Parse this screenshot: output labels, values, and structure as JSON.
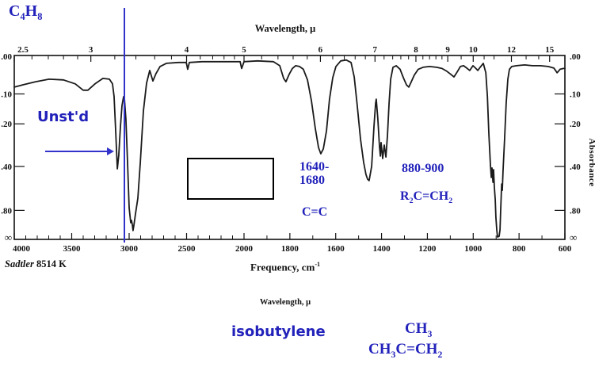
{
  "compound_formula": "C_{4}H_{8}",
  "annotations": {
    "unstd": "Unst'd",
    "range1_line1": "1640-",
    "range1_line2": "1680",
    "range1_group": "C=C",
    "range2": "880-900",
    "range2_group": "R_{2}C=CH_{2}"
  },
  "footer": {
    "source_name": "Sadtler",
    "source_code": "8514 K"
  },
  "caption": {
    "wavelength_label": "Wavelength, μ",
    "compound_name": "isobutylene",
    "structure_top": "CH_{3}",
    "structure_bottom": "CH_{3}C=CH_{2}"
  },
  "colors": {
    "annotation_blue": "#2222bb",
    "marker_blue": "#3333cc",
    "curve_black": "#1a1a1a",
    "axis_black": "#111111"
  },
  "chart_data": {
    "type": "line",
    "title_top_axis": "Wavelength, μ",
    "xlabel": "Frequency, cm^{-1}",
    "ylabel": "Absorbance",
    "x_range_cm1": [
      4000,
      600
    ],
    "x_scale_note": "linear 4000-2000 cm-1, expanded linear 2000-600 cm-1",
    "y_axis_labels": [
      ".00",
      ".10",
      ".20",
      ".40",
      ".80",
      "∞"
    ],
    "y_tick_absorbance": [
      0.1,
      0.2,
      0.4,
      0.8
    ],
    "bottom_ticks_labeled": [
      4000,
      3500,
      3000,
      2500,
      2000,
      1800,
      1600,
      1400,
      1200,
      1000,
      800,
      600
    ],
    "bottom_ticks_minor": [
      3900,
      3800,
      3700,
      3600,
      3400,
      3300,
      3200,
      3100,
      2900,
      2800,
      2700,
      2600,
      2400,
      2300,
      2200,
      2100,
      1900,
      1700,
      1500,
      1300,
      1100,
      900,
      700
    ],
    "top_ticks_labeled_um": [
      2.5,
      3,
      4,
      5,
      6,
      7,
      8,
      9,
      10,
      12,
      15
    ],
    "top_ticks_minor_um": [
      2.6,
      2.7,
      2.8,
      2.9,
      3.2,
      3.4,
      3.6,
      3.8,
      4.2,
      4.4,
      4.6,
      4.8,
      5.2,
      5.4,
      5.6,
      5.8,
      6.2,
      6.4,
      6.6,
      6.8,
      7.2,
      7.4,
      7.6,
      7.8,
      8.2,
      8.4,
      8.6,
      8.8,
      9.5,
      10.5,
      11,
      13,
      14
    ],
    "highlight_line_cm1": 3040,
    "series": [
      {
        "name": "IR spectrum of C4H8 (isobutylene), Sadtler 8514 K",
        "points_cm1_absorbance": [
          [
            4000,
            0.08
          ],
          [
            3917,
            0.073
          ],
          [
            3814,
            0.065
          ],
          [
            3697,
            0.058
          ],
          [
            3572,
            0.06
          ],
          [
            3469,
            0.071
          ],
          [
            3400,
            0.089
          ],
          [
            3359,
            0.089
          ],
          [
            3297,
            0.071
          ],
          [
            3228,
            0.056
          ],
          [
            3172,
            0.058
          ],
          [
            3145,
            0.071
          ],
          [
            3131,
            0.108
          ],
          [
            3117,
            0.227
          ],
          [
            3103,
            0.414
          ],
          [
            3090,
            0.338
          ],
          [
            3076,
            0.211
          ],
          [
            3062,
            0.136
          ],
          [
            3048,
            0.108
          ],
          [
            3041,
            0.116
          ],
          [
            3028,
            0.182
          ],
          [
            3014,
            0.377
          ],
          [
            3000,
            0.762
          ],
          [
            2986,
            1.041
          ],
          [
            2979,
            0.983
          ],
          [
            2972,
            1.108
          ],
          [
            2966,
            1.319
          ],
          [
            2959,
            1.131
          ],
          [
            2945,
            0.857
          ],
          [
            2924,
            0.648
          ],
          [
            2903,
            0.377
          ],
          [
            2876,
            0.154
          ],
          [
            2848,
            0.069
          ],
          [
            2821,
            0.035
          ],
          [
            2793,
            0.063
          ],
          [
            2766,
            0.043
          ],
          [
            2731,
            0.025
          ],
          [
            2676,
            0.017
          ],
          [
            2572,
            0.015
          ],
          [
            2503,
            0.015
          ],
          [
            2490,
            0.032
          ],
          [
            2476,
            0.015
          ],
          [
            2366,
            0.013
          ],
          [
            2228,
            0.013
          ],
          [
            2090,
            0.013
          ],
          [
            2034,
            0.013
          ],
          [
            2021,
            0.03
          ],
          [
            2000,
            0.013
          ],
          [
            1941,
            0.011
          ],
          [
            1872,
            0.013
          ],
          [
            1844,
            0.023
          ],
          [
            1827,
            0.056
          ],
          [
            1817,
            0.065
          ],
          [
            1803,
            0.045
          ],
          [
            1789,
            0.03
          ],
          [
            1775,
            0.023
          ],
          [
            1758,
            0.025
          ],
          [
            1741,
            0.032
          ],
          [
            1723,
            0.06
          ],
          [
            1706,
            0.121
          ],
          [
            1689,
            0.218
          ],
          [
            1675,
            0.299
          ],
          [
            1665,
            0.33
          ],
          [
            1654,
            0.306
          ],
          [
            1640,
            0.227
          ],
          [
            1627,
            0.116
          ],
          [
            1613,
            0.054
          ],
          [
            1599,
            0.025
          ],
          [
            1578,
            0.011
          ],
          [
            1554,
            0.009
          ],
          [
            1533,
            0.015
          ],
          [
            1519,
            0.052
          ],
          [
            1506,
            0.136
          ],
          [
            1492,
            0.26
          ],
          [
            1478,
            0.377
          ],
          [
            1468,
            0.45
          ],
          [
            1461,
            0.483
          ],
          [
            1454,
            0.494
          ],
          [
            1443,
            0.399
          ],
          [
            1433,
            0.211
          ],
          [
            1426,
            0.128
          ],
          [
            1423,
            0.116
          ],
          [
            1416,
            0.182
          ],
          [
            1409,
            0.296
          ],
          [
            1405,
            0.342
          ],
          [
            1402,
            0.277
          ],
          [
            1395,
            0.355
          ],
          [
            1388,
            0.288
          ],
          [
            1381,
            0.347
          ],
          [
            1374,
            0.243
          ],
          [
            1367,
            0.128
          ],
          [
            1360,
            0.058
          ],
          [
            1350,
            0.027
          ],
          [
            1336,
            0.023
          ],
          [
            1319,
            0.032
          ],
          [
            1305,
            0.054
          ],
          [
            1291,
            0.074
          ],
          [
            1281,
            0.08
          ],
          [
            1271,
            0.066
          ],
          [
            1257,
            0.047
          ],
          [
            1240,
            0.032
          ],
          [
            1219,
            0.027
          ],
          [
            1191,
            0.025
          ],
          [
            1160,
            0.027
          ],
          [
            1136,
            0.03
          ],
          [
            1115,
            0.037
          ],
          [
            1098,
            0.045
          ],
          [
            1084,
            0.052
          ],
          [
            1070,
            0.039
          ],
          [
            1056,
            0.025
          ],
          [
            1042,
            0.023
          ],
          [
            1028,
            0.029
          ],
          [
            1015,
            0.035
          ],
          [
            1001,
            0.023
          ],
          [
            990,
            0.029
          ],
          [
            980,
            0.035
          ],
          [
            970,
            0.027
          ],
          [
            956,
            0.017
          ],
          [
            945,
            0.041
          ],
          [
            938,
            0.108
          ],
          [
            932,
            0.237
          ],
          [
            925,
            0.39
          ],
          [
            921,
            0.471
          ],
          [
            918,
            0.409
          ],
          [
            914,
            0.506
          ],
          [
            911,
            0.419
          ],
          [
            908,
            0.538
          ],
          [
            904,
            0.665
          ],
          [
            901,
            0.917
          ],
          [
            897,
            1.319
          ],
          [
            894,
            1.886
          ],
          [
            887,
            1.77
          ],
          [
            883,
            1.284
          ],
          [
            880,
            0.783
          ],
          [
            876,
            0.519
          ],
          [
            873,
            0.572
          ],
          [
            870,
            0.429
          ],
          [
            863,
            0.26
          ],
          [
            856,
            0.128
          ],
          [
            849,
            0.058
          ],
          [
            842,
            0.032
          ],
          [
            832,
            0.025
          ],
          [
            811,
            0.023
          ],
          [
            776,
            0.021
          ],
          [
            742,
            0.023
          ],
          [
            707,
            0.023
          ],
          [
            673,
            0.025
          ],
          [
            648,
            0.029
          ],
          [
            634,
            0.041
          ],
          [
            621,
            0.032
          ],
          [
            607,
            0.03
          ],
          [
            600,
            0.03
          ]
        ]
      }
    ]
  }
}
